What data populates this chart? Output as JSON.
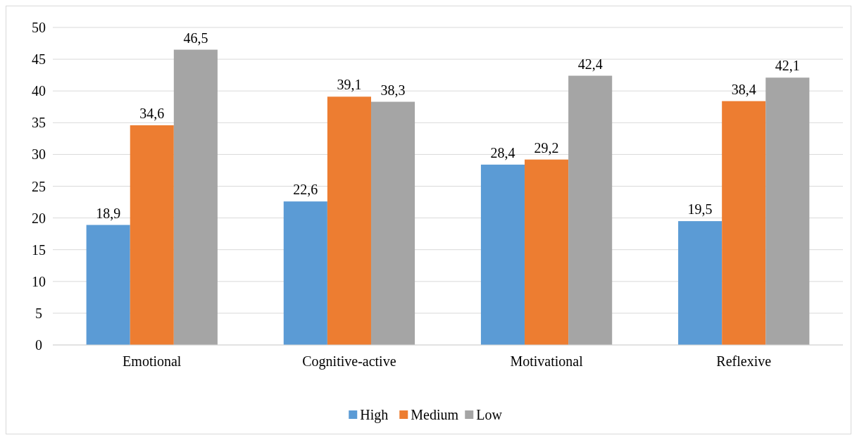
{
  "chart_data": {
    "type": "bar",
    "categories": [
      "Emotional",
      "Cognitive-active",
      "Motivational",
      "Reflexive"
    ],
    "series": [
      {
        "name": "High",
        "color": "#5b9bd5",
        "values": [
          18.9,
          22.6,
          28.4,
          19.5
        ],
        "value_labels": [
          "18,9",
          "22,6",
          "28,4",
          "19,5"
        ]
      },
      {
        "name": "Medium",
        "color": "#ed7d31",
        "values": [
          34.6,
          39.1,
          29.2,
          38.4
        ],
        "value_labels": [
          "34,6",
          "39,1",
          "29,2",
          "38,4"
        ]
      },
      {
        "name": "Low",
        "color": "#a5a5a5",
        "values": [
          46.5,
          38.3,
          42.4,
          42.1
        ],
        "value_labels": [
          "46,5",
          "38,3",
          "42,4",
          "42,1"
        ]
      }
    ],
    "ylim": [
      0,
      50
    ],
    "yticks": [
      0,
      5,
      10,
      15,
      20,
      25,
      30,
      35,
      40,
      45,
      50
    ],
    "grid": "y",
    "legend": "bottom"
  }
}
